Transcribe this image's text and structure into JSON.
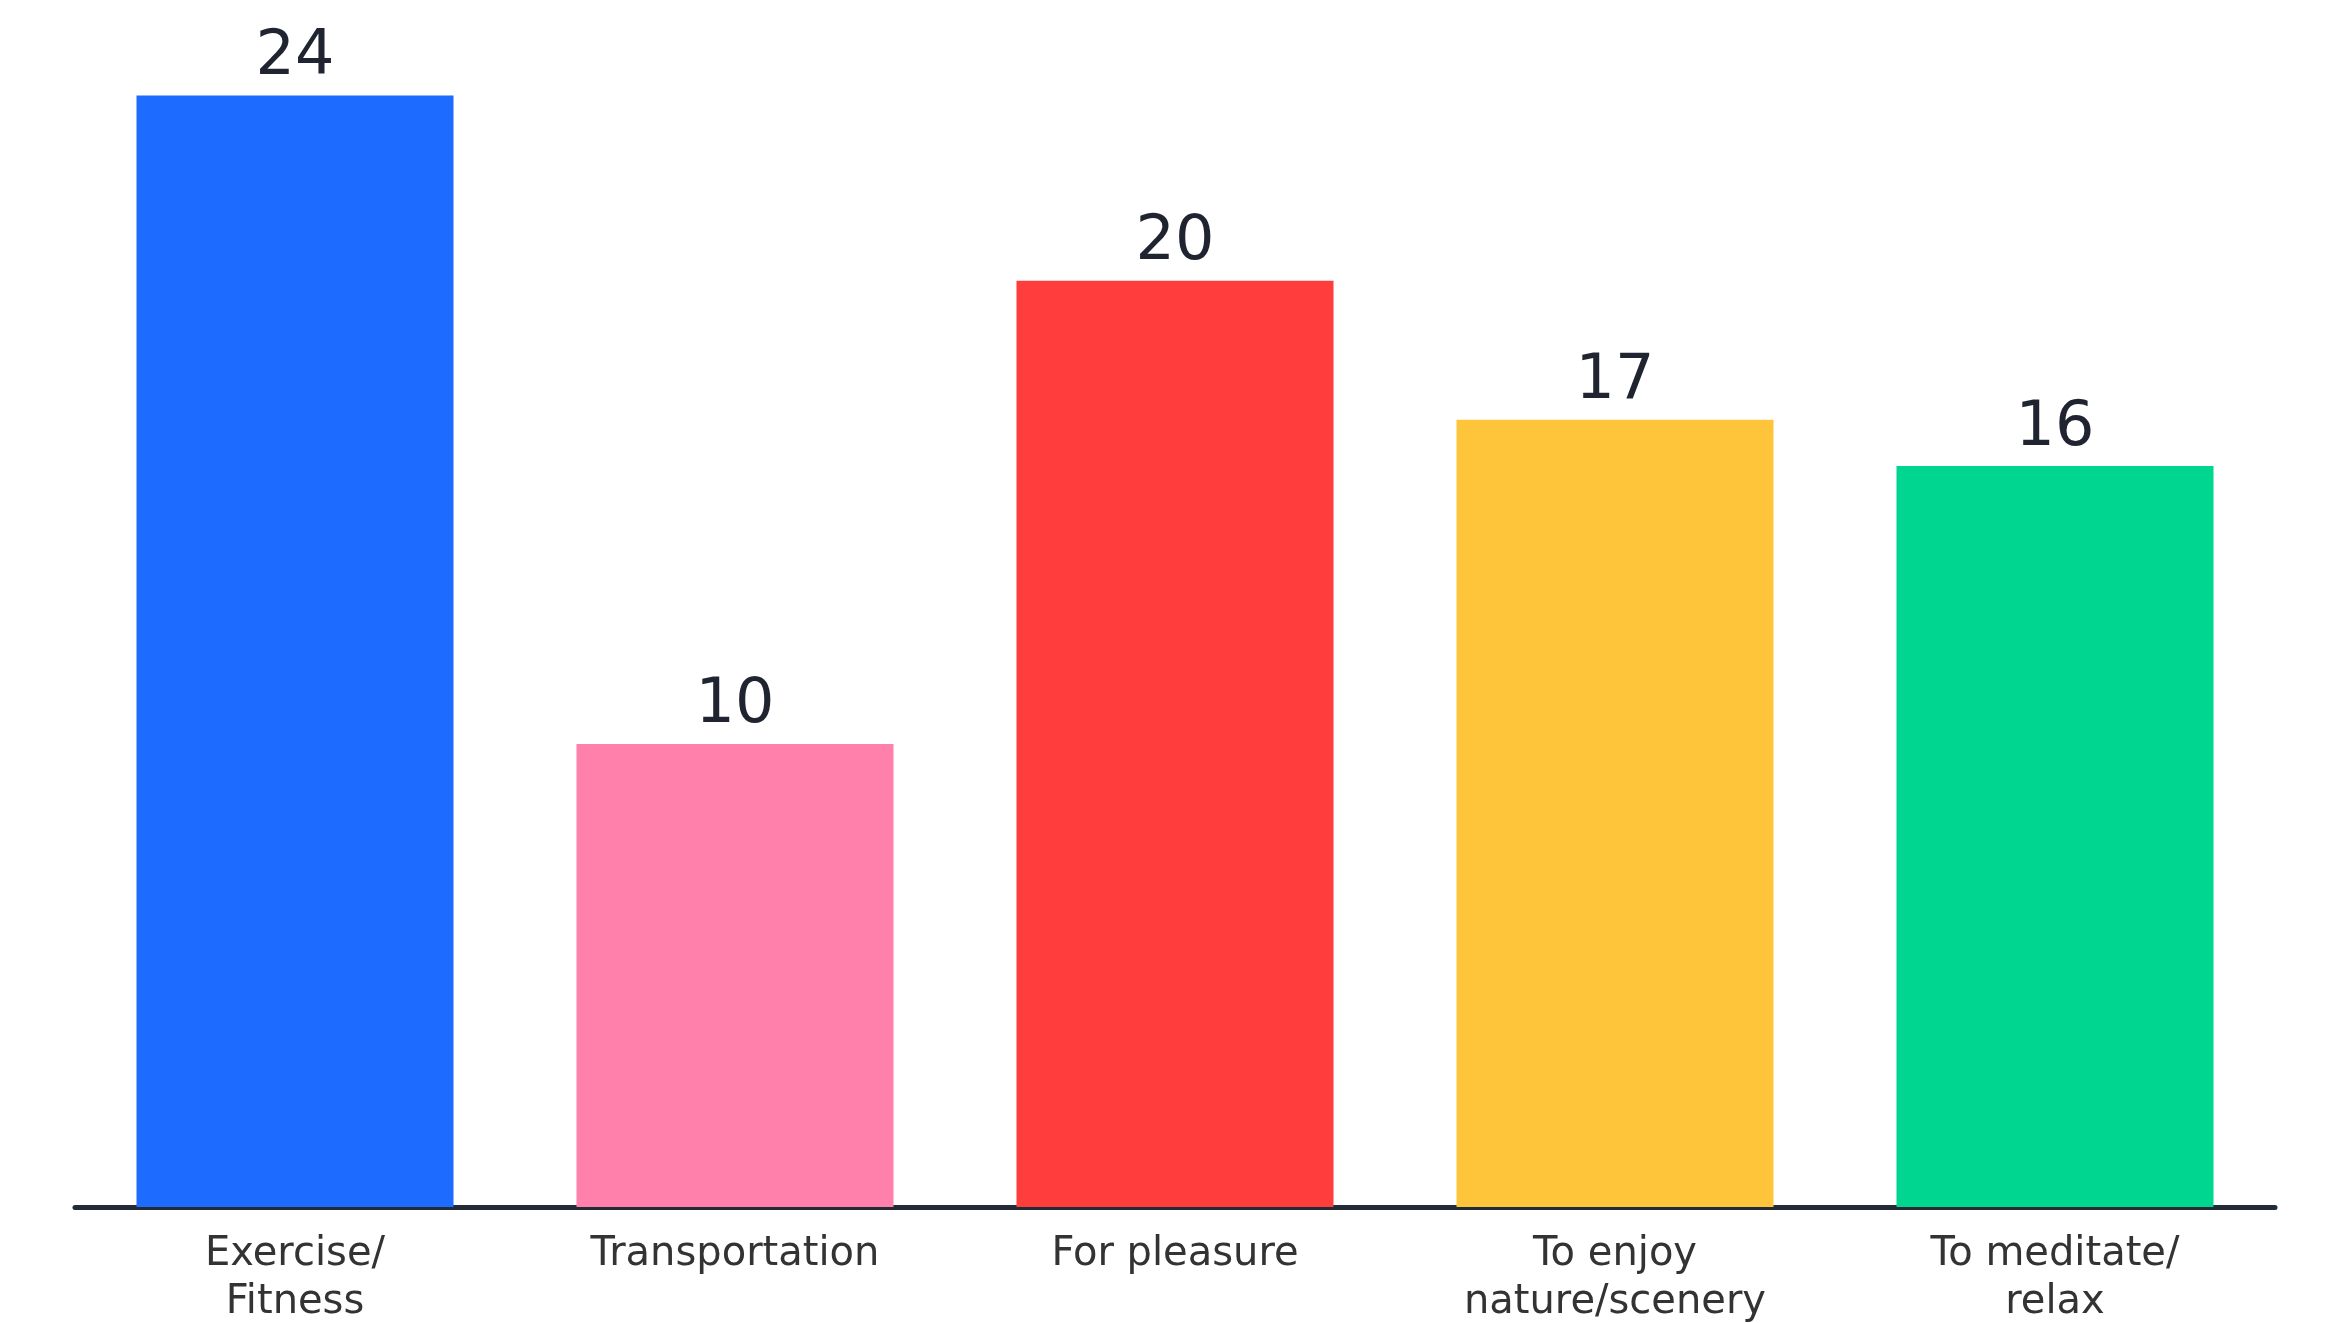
{
  "chart_data": {
    "type": "bar",
    "categories": [
      "Exercise/ Fitness",
      "Transportation",
      "For pleasure",
      "To enjoy nature/scenery",
      "To meditate/ relax"
    ],
    "values": [
      24,
      10,
      20,
      17,
      16
    ],
    "colors": [
      "#1e6bff",
      "#ff80ab",
      "#ff3d3d",
      "#ffc53a",
      "#00d68f"
    ],
    "data_labels": true
  }
}
